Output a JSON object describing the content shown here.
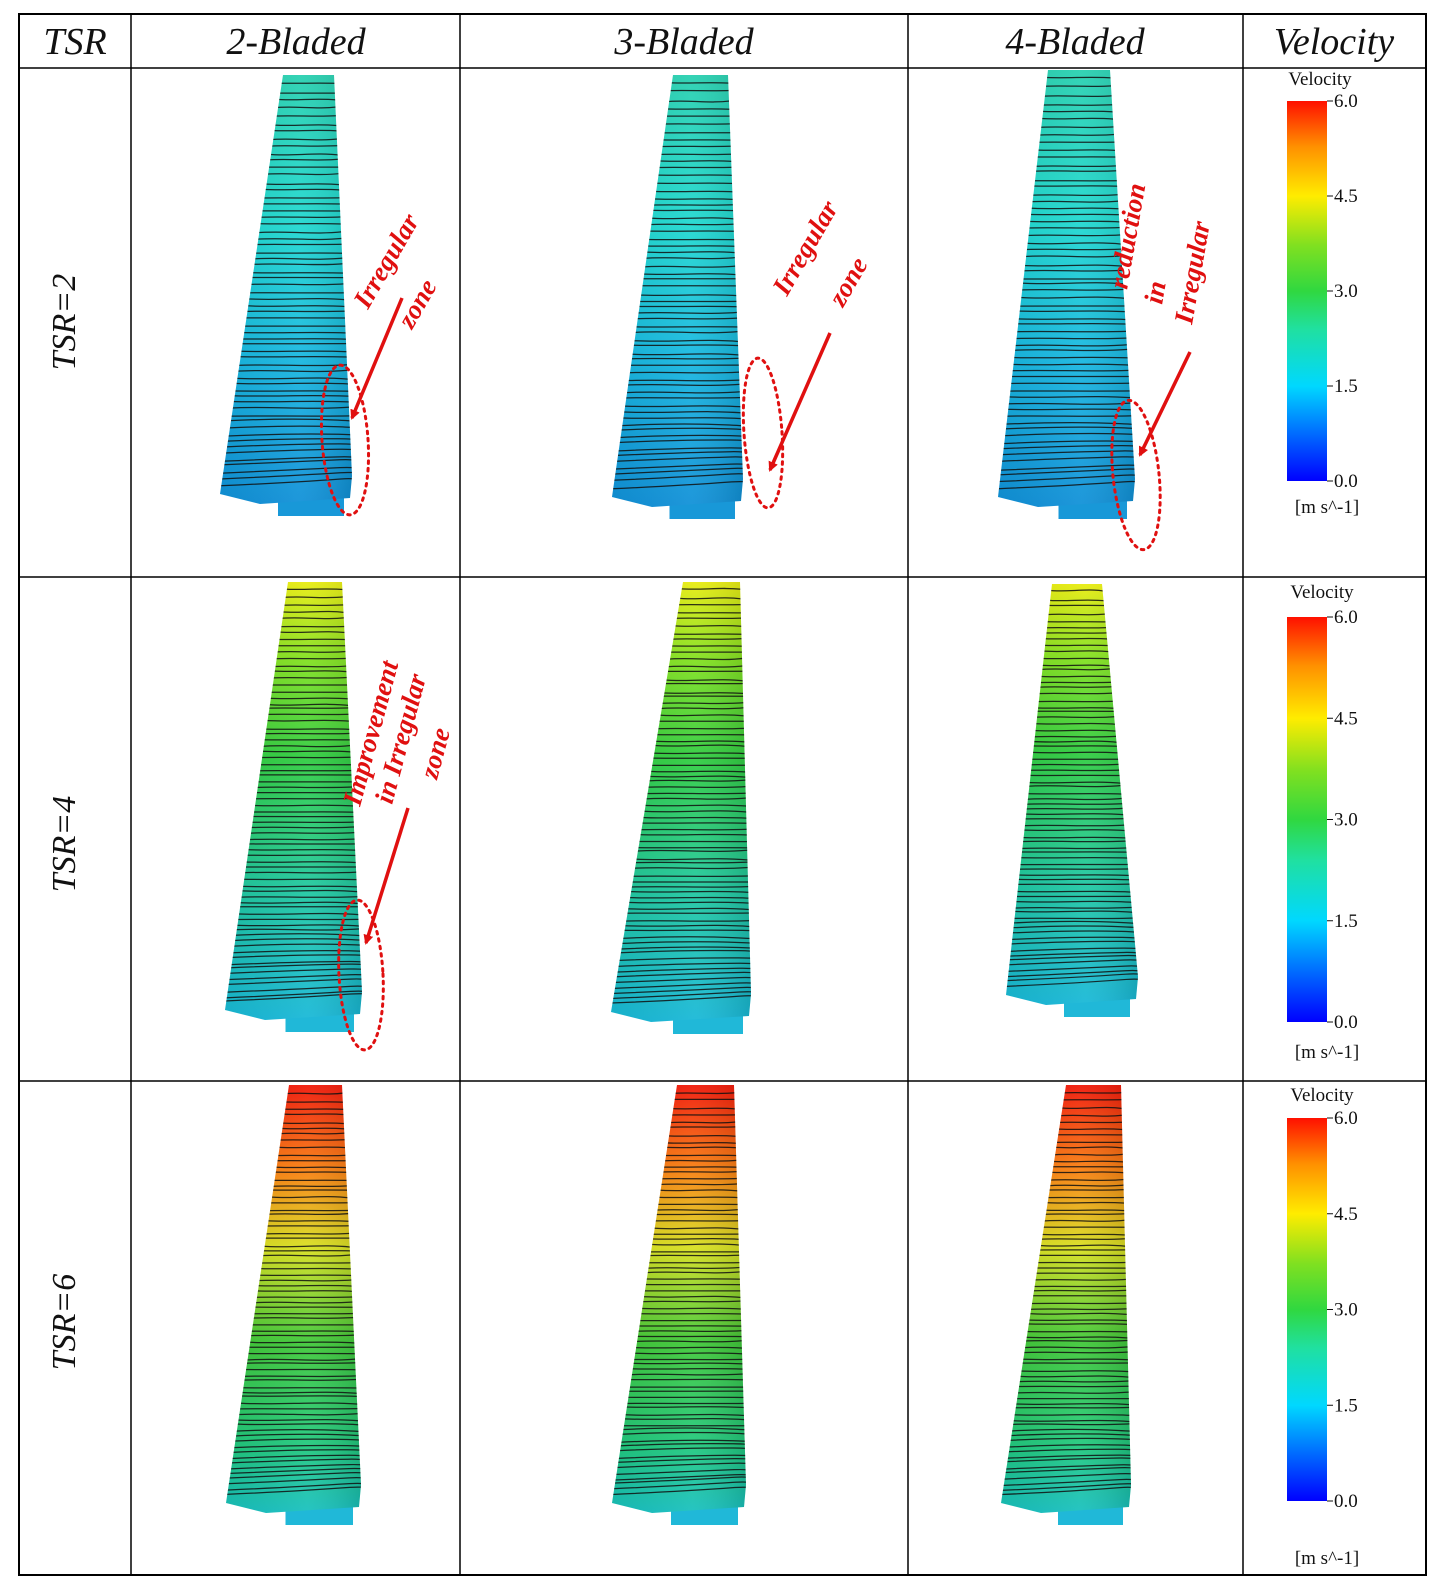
{
  "table": {
    "header": {
      "tsr": "TSR",
      "columns": [
        "2-Bladed",
        "3-Bladed",
        "4-Bladed"
      ],
      "velocity": "Velocity"
    },
    "rows": [
      {
        "label": "TSR=2",
        "tsr": 2
      },
      {
        "label": "TSR=4",
        "tsr": 4
      },
      {
        "label": "TSR=6",
        "tsr": 6
      }
    ]
  },
  "colorbar": {
    "title": "Velocity",
    "unit": "[m s^-1]",
    "ticks": [
      "6.0",
      "4.5",
      "3.0",
      "1.5",
      "0.0"
    ],
    "min": 0.0,
    "max": 6.0,
    "colormap": [
      "#0000ff",
      "#00a8ff",
      "#00e0e0",
      "#22d058",
      "#3cd83c",
      "#b8e020",
      "#ffe600",
      "#ff9a00",
      "#ff1a00"
    ]
  },
  "annotations": [
    {
      "lines": [
        "Irregular",
        "zone"
      ]
    },
    {
      "lines": [
        "Irregular",
        "zone"
      ]
    },
    {
      "lines": [
        "reduction",
        "in",
        "Irregular"
      ]
    },
    {
      "lines": [
        "Improvement",
        "in Irregular",
        "zone"
      ]
    }
  ],
  "colors": {
    "annotation": "#e01010",
    "grid": "#000000",
    "streamline": "#111111"
  }
}
